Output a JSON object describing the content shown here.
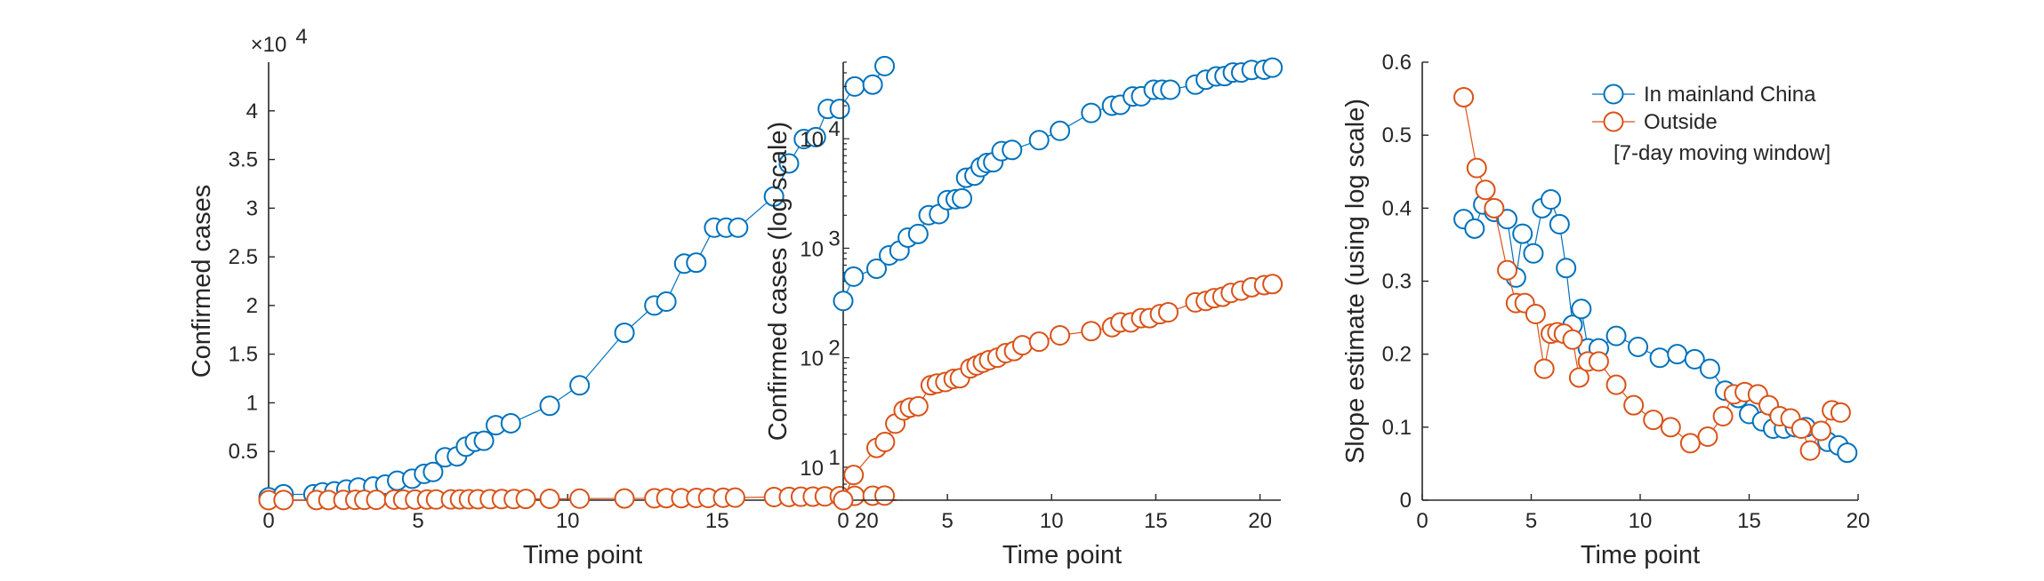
{
  "chart_data": [
    {
      "type": "line",
      "panel": "linear",
      "title": "",
      "xlabel": "Time point",
      "ylabel": "Confirmed cases",
      "exponent_label": "×10",
      "exponent_power": "4",
      "xlim": [
        0,
        21
      ],
      "ylim": [
        0,
        45000
      ],
      "x_ticks": [
        0,
        5,
        10,
        15,
        20
      ],
      "x_tick_labels": [
        "0",
        "5",
        "10",
        "15",
        "20"
      ],
      "y_ticks": [
        5000,
        10000,
        15000,
        20000,
        25000,
        30000,
        35000,
        40000
      ],
      "y_tick_labels": [
        "0.5",
        "1",
        "1.5",
        "2",
        "2.5",
        "3",
        "3.5",
        "4"
      ],
      "grid": false,
      "series": [
        {
          "color": "#0072BD",
          "marker": "circle",
          "points": [
            [
              0,
              300
            ],
            [
              0.5,
              600
            ],
            [
              1.5,
              600
            ],
            [
              1.8,
              800
            ],
            [
              2.2,
              900
            ],
            [
              2.6,
              1100
            ],
            [
              3,
              1300
            ],
            [
              3.5,
              1400
            ],
            [
              3.9,
              1600
            ],
            [
              4.3,
              2000
            ],
            [
              4.8,
              2200
            ],
            [
              5.2,
              2700
            ],
            [
              5.5,
              2900
            ],
            [
              5.9,
              4400
            ],
            [
              6.3,
              4500
            ],
            [
              6.6,
              5500
            ],
            [
              6.9,
              6000
            ],
            [
              7.2,
              6100
            ],
            [
              7.6,
              7700
            ],
            [
              8.1,
              7900
            ],
            [
              9.4,
              9700
            ],
            [
              10.4,
              11800
            ],
            [
              11.9,
              17200
            ],
            [
              12.9,
              20000
            ],
            [
              13.3,
              20400
            ],
            [
              13.9,
              24300
            ],
            [
              14.3,
              24400
            ],
            [
              14.9,
              28000
            ],
            [
              15.3,
              28000
            ],
            [
              15.7,
              28000
            ],
            [
              16.9,
              31200
            ],
            [
              17.4,
              34600
            ],
            [
              17.9,
              37100
            ],
            [
              18.3,
              37300
            ],
            [
              18.7,
              40200
            ],
            [
              19.1,
              40200
            ],
            [
              19.6,
              42500
            ],
            [
              20.2,
              42700
            ],
            [
              20.6,
              44600
            ]
          ]
        },
        {
          "color": "#D95319",
          "marker": "circle",
          "points": [
            [
              0,
              5
            ],
            [
              0.5,
              9
            ],
            [
              1.6,
              15
            ],
            [
              2,
              17
            ],
            [
              2.5,
              25
            ],
            [
              2.9,
              33
            ],
            [
              3.2,
              35
            ],
            [
              3.6,
              36
            ],
            [
              4.2,
              56
            ],
            [
              4.5,
              58
            ],
            [
              4.9,
              60
            ],
            [
              5.3,
              64
            ],
            [
              5.6,
              65
            ],
            [
              6.1,
              80
            ],
            [
              6.4,
              85
            ],
            [
              6.7,
              90
            ],
            [
              7,
              95
            ],
            [
              7.4,
              100
            ],
            [
              7.8,
              110
            ],
            [
              8.2,
              115
            ],
            [
              8.6,
              130
            ],
            [
              9.4,
              140
            ],
            [
              10.4,
              160
            ],
            [
              11.9,
              175
            ],
            [
              12.9,
              190
            ],
            [
              13.3,
              210
            ],
            [
              13.8,
              210
            ],
            [
              14.3,
              230
            ],
            [
              14.7,
              230
            ],
            [
              15.2,
              250
            ],
            [
              15.6,
              260
            ],
            [
              16.9,
              320
            ],
            [
              17.4,
              330
            ],
            [
              17.8,
              350
            ],
            [
              18.2,
              360
            ],
            [
              18.6,
              390
            ],
            [
              19.1,
              410
            ],
            [
              19.6,
              440
            ],
            [
              20.2,
              460
            ],
            [
              20.6,
              470
            ]
          ]
        }
      ]
    },
    {
      "type": "line",
      "panel": "log",
      "title": "",
      "xlabel": "Time point",
      "ylabel": "Confirmed cases (log scale)",
      "xlim": [
        0,
        21
      ],
      "ylim": [
        5,
        50000
      ],
      "y_scale": "log",
      "x_ticks": [
        0,
        5,
        10,
        15,
        20
      ],
      "x_tick_labels": [
        "0",
        "5",
        "10",
        "15",
        "20"
      ],
      "y_major": [
        {
          "value": 10,
          "base": "10",
          "power": "1"
        },
        {
          "value": 100,
          "base": "10",
          "power": "2"
        },
        {
          "value": 1000,
          "base": "10",
          "power": "3"
        },
        {
          "value": 10000,
          "base": "10",
          "power": "4"
        }
      ],
      "grid": false,
      "series": [
        {
          "color": "#0072BD",
          "marker": "circle",
          "points": [
            [
              0,
              330
            ],
            [
              0.5,
              550
            ],
            [
              1.6,
              650
            ],
            [
              2.2,
              860
            ],
            [
              2.7,
              950
            ],
            [
              3.1,
              1250
            ],
            [
              3.6,
              1350
            ],
            [
              4.1,
              2000
            ],
            [
              4.6,
              2050
            ],
            [
              5,
              2750
            ],
            [
              5.4,
              2800
            ],
            [
              5.7,
              2850
            ],
            [
              5.9,
              4400
            ],
            [
              6.3,
              4600
            ],
            [
              6.6,
              5500
            ],
            [
              6.9,
              6000
            ],
            [
              7.2,
              6100
            ],
            [
              7.6,
              7700
            ],
            [
              8.1,
              7900
            ],
            [
              9.4,
              9700
            ],
            [
              10.4,
              11800
            ],
            [
              11.9,
              17200
            ],
            [
              12.9,
              20000
            ],
            [
              13.3,
              20400
            ],
            [
              13.9,
              24300
            ],
            [
              14.3,
              24400
            ],
            [
              14.9,
              28000
            ],
            [
              15.3,
              28000
            ],
            [
              15.7,
              28000
            ],
            [
              16.9,
              31200
            ],
            [
              17.4,
              34600
            ],
            [
              17.9,
              37100
            ],
            [
              18.3,
              37300
            ],
            [
              18.7,
              40200
            ],
            [
              19.1,
              40200
            ],
            [
              19.6,
              42500
            ],
            [
              20.2,
              42700
            ],
            [
              20.6,
              44600
            ]
          ]
        },
        {
          "color": "#D95319",
          "marker": "circle",
          "points": [
            [
              0,
              5
            ],
            [
              0.5,
              8.5
            ],
            [
              1.6,
              15
            ],
            [
              2,
              17
            ],
            [
              2.5,
              25
            ],
            [
              2.9,
              33
            ],
            [
              3.2,
              35
            ],
            [
              3.6,
              36
            ],
            [
              4.2,
              56
            ],
            [
              4.5,
              58
            ],
            [
              4.9,
              60
            ],
            [
              5.3,
              64
            ],
            [
              5.6,
              65
            ],
            [
              6.1,
              80
            ],
            [
              6.4,
              85
            ],
            [
              6.7,
              90
            ],
            [
              7,
              95
            ],
            [
              7.4,
              100
            ],
            [
              7.8,
              110
            ],
            [
              8.2,
              115
            ],
            [
              8.6,
              130
            ],
            [
              9.4,
              140
            ],
            [
              10.4,
              160
            ],
            [
              11.9,
              175
            ],
            [
              12.9,
              190
            ],
            [
              13.3,
              210
            ],
            [
              13.8,
              210
            ],
            [
              14.3,
              230
            ],
            [
              14.7,
              230
            ],
            [
              15.2,
              250
            ],
            [
              15.6,
              260
            ],
            [
              16.9,
              320
            ],
            [
              17.4,
              330
            ],
            [
              17.8,
              350
            ],
            [
              18.2,
              360
            ],
            [
              18.6,
              390
            ],
            [
              19.1,
              410
            ],
            [
              19.6,
              440
            ],
            [
              20.2,
              460
            ],
            [
              20.6,
              470
            ]
          ]
        }
      ]
    },
    {
      "type": "line",
      "panel": "slope",
      "title": "",
      "xlabel": "Time point",
      "ylabel": "Slope estimate (using log scale)",
      "xlim": [
        0,
        20
      ],
      "ylim": [
        0,
        0.6
      ],
      "x_ticks": [
        0,
        5,
        10,
        15,
        20
      ],
      "x_tick_labels": [
        "0",
        "5",
        "10",
        "15",
        "20"
      ],
      "y_ticks": [
        0,
        0.1,
        0.2,
        0.3,
        0.4,
        0.5,
        0.6
      ],
      "y_tick_labels": [
        "0",
        "0.1",
        "0.2",
        "0.3",
        "0.4",
        "0.5",
        "0.6"
      ],
      "grid": false,
      "legend_position": "top-right",
      "legend_note": "[7-day moving window]",
      "series": [
        {
          "name": "In mainland China",
          "color": "#0072BD",
          "marker": "circle",
          "points": [
            [
              1.9,
              0.385
            ],
            [
              2.4,
              0.372
            ],
            [
              2.8,
              0.405
            ],
            [
              3.3,
              0.395
            ],
            [
              3.9,
              0.385
            ],
            [
              4.3,
              0.305
            ],
            [
              4.6,
              0.365
            ],
            [
              5.1,
              0.338
            ],
            [
              5.5,
              0.4
            ],
            [
              5.9,
              0.412
            ],
            [
              6.3,
              0.378
            ],
            [
              6.6,
              0.318
            ],
            [
              6.9,
              0.24
            ],
            [
              7.3,
              0.262
            ],
            [
              7.6,
              0.208
            ],
            [
              8.1,
              0.208
            ],
            [
              8.9,
              0.225
            ],
            [
              9.9,
              0.21
            ],
            [
              10.9,
              0.195
            ],
            [
              11.7,
              0.2
            ],
            [
              12.5,
              0.193
            ],
            [
              13.2,
              0.18
            ],
            [
              13.9,
              0.15
            ],
            [
              14.5,
              0.14
            ],
            [
              15,
              0.118
            ],
            [
              15.6,
              0.108
            ],
            [
              16.1,
              0.098
            ],
            [
              16.6,
              0.098
            ],
            [
              17.1,
              0.1
            ],
            [
              17.6,
              0.1
            ],
            [
              18.6,
              0.08
            ],
            [
              19.1,
              0.075
            ],
            [
              19.5,
              0.065
            ]
          ]
        },
        {
          "name": "Outside",
          "color": "#D95319",
          "marker": "circle",
          "points": [
            [
              1.9,
              0.552
            ],
            [
              2.5,
              0.455
            ],
            [
              2.9,
              0.425
            ],
            [
              3.3,
              0.4
            ],
            [
              3.9,
              0.315
            ],
            [
              4.3,
              0.27
            ],
            [
              4.7,
              0.27
            ],
            [
              5.2,
              0.255
            ],
            [
              5.6,
              0.18
            ],
            [
              5.9,
              0.228
            ],
            [
              6.2,
              0.23
            ],
            [
              6.5,
              0.228
            ],
            [
              6.9,
              0.22
            ],
            [
              7.2,
              0.168
            ],
            [
              7.6,
              0.19
            ],
            [
              8.1,
              0.19
            ],
            [
              8.9,
              0.158
            ],
            [
              9.7,
              0.13
            ],
            [
              10.6,
              0.11
            ],
            [
              11.4,
              0.1
            ],
            [
              12.3,
              0.078
            ],
            [
              13.1,
              0.087
            ],
            [
              13.8,
              0.115
            ],
            [
              14.3,
              0.145
            ],
            [
              14.8,
              0.148
            ],
            [
              15.4,
              0.145
            ],
            [
              15.9,
              0.13
            ],
            [
              16.4,
              0.115
            ],
            [
              16.9,
              0.112
            ],
            [
              17.4,
              0.098
            ],
            [
              17.8,
              0.068
            ],
            [
              18.3,
              0.095
            ],
            [
              18.8,
              0.123
            ],
            [
              19.2,
              0.12
            ]
          ]
        }
      ]
    }
  ]
}
